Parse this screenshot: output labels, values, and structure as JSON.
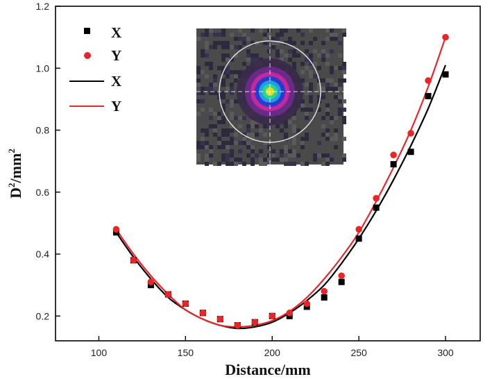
{
  "chart_data": {
    "type": "scatter",
    "xlabel": "Distance/mm",
    "ylabel_base": "D",
    "ylabel_sup1": "2",
    "ylabel_mid": "/mm",
    "ylabel_sup2": "2",
    "xlim": [
      75,
      320
    ],
    "ylim": [
      0.12,
      1.2
    ],
    "x_ticks": [
      100,
      150,
      200,
      250,
      300
    ],
    "y_ticks": [
      0.2,
      0.4,
      0.6,
      0.8,
      1.0,
      1.2
    ],
    "y_tick_labels": [
      "0.2",
      "0.4",
      "0.6",
      "0.8",
      "1.0",
      "1.2"
    ],
    "legend_position": "top-left",
    "legend": [
      {
        "label": "X",
        "kind": "square-marker",
        "color": "#000000"
      },
      {
        "label": "Y",
        "kind": "circle-marker",
        "color": "#e8262a"
      },
      {
        "label": "X",
        "kind": "line",
        "color": "#000000"
      },
      {
        "label": "Y",
        "kind": "line",
        "color": "#e8262a"
      }
    ],
    "series": [
      {
        "name": "X",
        "marker": "square",
        "color": "#000000",
        "x": [
          110,
          120,
          130,
          140,
          150,
          160,
          170,
          180,
          190,
          200,
          210,
          220,
          230,
          240,
          250,
          260,
          270,
          280,
          290,
          300
        ],
        "y": [
          0.47,
          0.38,
          0.3,
          0.27,
          0.24,
          0.21,
          0.19,
          0.17,
          0.18,
          0.2,
          0.2,
          0.23,
          0.26,
          0.31,
          0.45,
          0.55,
          0.69,
          0.73,
          0.91,
          0.98
        ]
      },
      {
        "name": "Y",
        "marker": "circle",
        "color": "#e8262a",
        "x": [
          110,
          120,
          130,
          140,
          150,
          160,
          170,
          180,
          190,
          200,
          210,
          220,
          230,
          240,
          250,
          260,
          270,
          280,
          290,
          300
        ],
        "y": [
          0.48,
          0.38,
          0.31,
          0.27,
          0.24,
          0.21,
          0.19,
          0.17,
          0.18,
          0.2,
          0.21,
          0.24,
          0.28,
          0.33,
          0.48,
          0.58,
          0.72,
          0.79,
          0.96,
          1.1
        ]
      }
    ],
    "fits": [
      {
        "name": "X",
        "color": "#000000",
        "x": [
          110,
          120,
          130,
          140,
          150,
          160,
          170,
          180,
          190,
          200,
          210,
          220,
          230,
          240,
          250,
          260,
          270,
          280,
          290,
          300
        ],
        "y": [
          0.47,
          0.39,
          0.32,
          0.26,
          0.22,
          0.19,
          0.17,
          0.16,
          0.165,
          0.18,
          0.21,
          0.25,
          0.3,
          0.37,
          0.45,
          0.54,
          0.64,
          0.75,
          0.87,
          1.01
        ]
      },
      {
        "name": "Y",
        "color": "#e8262a",
        "x": [
          110,
          120,
          130,
          140,
          150,
          160,
          170,
          180,
          190,
          200,
          210,
          220,
          230,
          240,
          250,
          260,
          270,
          280,
          290,
          300
        ],
        "y": [
          0.48,
          0.4,
          0.33,
          0.27,
          0.22,
          0.19,
          0.17,
          0.165,
          0.17,
          0.185,
          0.215,
          0.26,
          0.32,
          0.39,
          0.47,
          0.57,
          0.68,
          0.8,
          0.94,
          1.1
        ]
      }
    ]
  },
  "inset": {
    "description_color_scale": [
      "#1e2a6e",
      "#1a6bd0",
      "#3fd0a0",
      "#e0e020",
      "#f08020"
    ],
    "background": "#4a4a4a",
    "circle_color": "#e8e8e8"
  }
}
